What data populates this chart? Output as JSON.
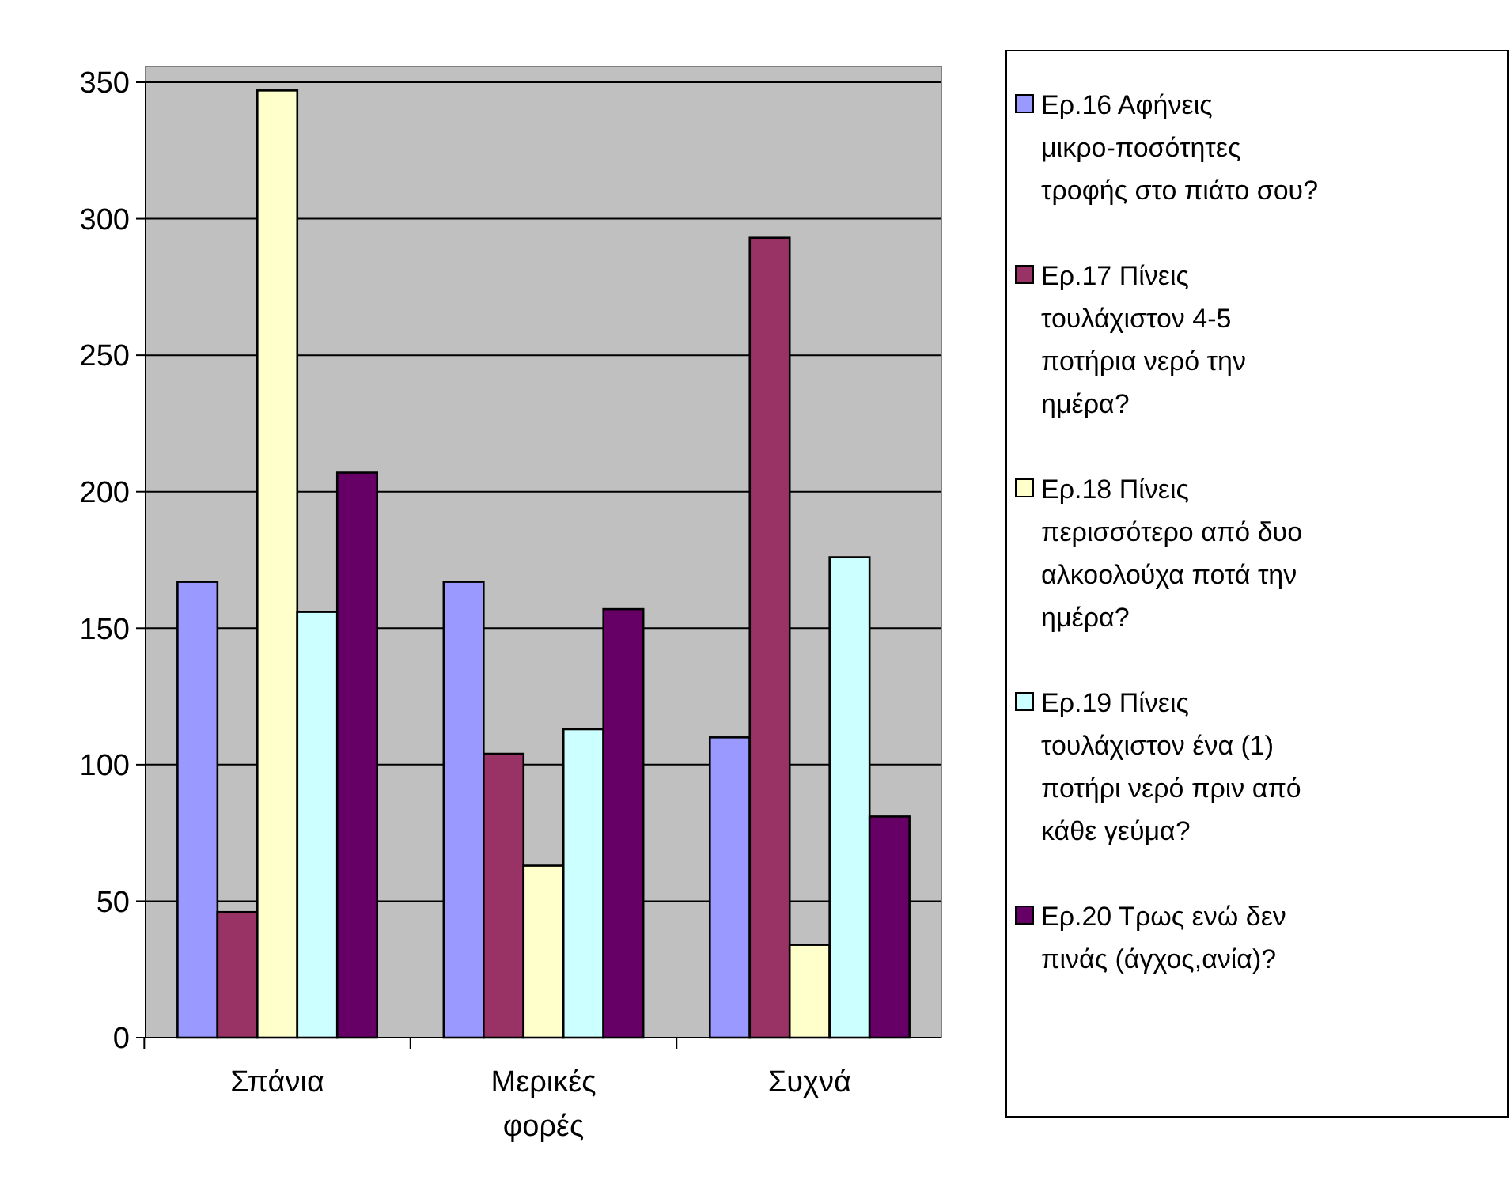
{
  "chart_data": {
    "type": "bar",
    "categories": [
      "Σπάνια",
      "Μερικές φορές",
      "Συχνά"
    ],
    "series": [
      {
        "name": "Ερ.16 Αφήνεις μικρο-ποσότητες τροφής στο πιάτο σου?",
        "color": "#9999ff",
        "values": [
          167,
          167,
          110
        ]
      },
      {
        "name": "Ερ.17 Πίνεις τουλάχιστον 4-5 ποτήρια νερό την ημέρα?",
        "color": "#993366",
        "values": [
          46,
          104,
          293
        ]
      },
      {
        "name": "Ερ.18 Πίνεις περισσότερο από δυο αλκοολούχα ποτά την ημέρα?",
        "color": "#ffffcc",
        "values": [
          347,
          63,
          34
        ]
      },
      {
        "name": "Ερ.19 Πίνεις τουλάχιστον ένα (1) ποτήρι νερό πριν από κάθε γεύμα?",
        "color": "#ccffff",
        "values": [
          156,
          113,
          176
        ]
      },
      {
        "name": "Ερ.20 Τρως ενώ δεν πινάς (άγχος,ανία)?",
        "color": "#660066",
        "values": [
          207,
          157,
          81
        ]
      }
    ],
    "ylim": [
      0,
      350
    ],
    "yticks": [
      0,
      50,
      100,
      150,
      200,
      250,
      300,
      350
    ],
    "grid": "y",
    "legend": "right"
  }
}
